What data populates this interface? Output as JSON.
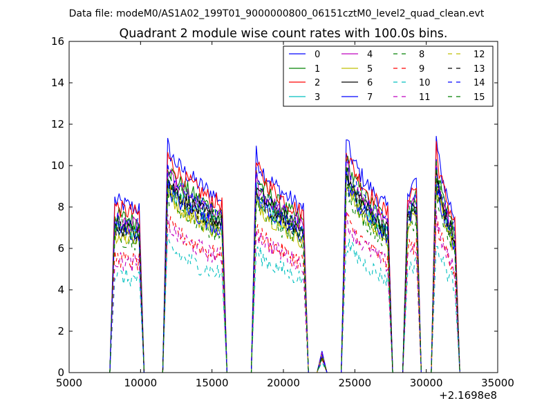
{
  "chart_data": {
    "type": "line",
    "suptitle": "Data file: modeM0/AS1A02_199T01_9000000800_06151cztM0_level2_quad_clean.evt",
    "title": "Quadrant 2 module wise count rates with 100.0s bins.",
    "xlabel": "",
    "ylabel": "",
    "x_offset_label": "+2.1698e8",
    "xlim": [
      5000,
      35000
    ],
    "ylim": [
      0,
      16
    ],
    "xticks": [
      "5000",
      "10000",
      "15000",
      "20000",
      "25000",
      "30000",
      "35000"
    ],
    "yticks": [
      "0",
      "2",
      "4",
      "6",
      "8",
      "10",
      "12",
      "14",
      "16"
    ],
    "grid": false,
    "legend_position": "top-right",
    "segments": [
      {
        "start": 8200,
        "end": 9900,
        "peak": 0.95,
        "tail": 0.9
      },
      {
        "start": 11900,
        "end": 15700,
        "peak": 1.25,
        "tail": 0.95
      },
      {
        "start": 18100,
        "end": 21400,
        "peak": 1.2,
        "tail": 0.9
      },
      {
        "start": 22700,
        "end": 22700,
        "peak": 0.35,
        "tail": 0.35
      },
      {
        "start": 24400,
        "end": 27300,
        "peak": 1.3,
        "tail": 0.9
      },
      {
        "start": 28700,
        "end": 29300,
        "peak": 1.0,
        "tail": 1.05
      },
      {
        "start": 30700,
        "end": 32000,
        "peak": 1.3,
        "tail": 0.85
      }
    ],
    "series": [
      {
        "name": "0",
        "color": "#0000ff",
        "dash": "solid",
        "level": 8.8
      },
      {
        "name": "1",
        "color": "#008000",
        "dash": "solid",
        "level": 8.1
      },
      {
        "name": "2",
        "color": "#ff0000",
        "dash": "solid",
        "level": 8.5
      },
      {
        "name": "3",
        "color": "#00bfbf",
        "dash": "solid",
        "level": 7.4
      },
      {
        "name": "4",
        "color": "#bf00bf",
        "dash": "solid",
        "level": 7.8
      },
      {
        "name": "5",
        "color": "#bfbf00",
        "dash": "solid",
        "level": 7.1
      },
      {
        "name": "6",
        "color": "#000000",
        "dash": "solid",
        "level": 7.6
      },
      {
        "name": "7",
        "color": "#0000ff",
        "dash": "solid",
        "level": 7.3
      },
      {
        "name": "8",
        "color": "#008000",
        "dash": "dashed",
        "level": 7.0
      },
      {
        "name": "9",
        "color": "#ff0000",
        "dash": "dashed",
        "level": 5.9
      },
      {
        "name": "10",
        "color": "#00bfbf",
        "dash": "dashed",
        "level": 5.0
      },
      {
        "name": "11",
        "color": "#bf00bf",
        "dash": "dashed",
        "level": 5.8
      },
      {
        "name": "12",
        "color": "#bfbf00",
        "dash": "dashed",
        "level": 7.3
      },
      {
        "name": "13",
        "color": "#000000",
        "dash": "dashed",
        "level": 7.5
      },
      {
        "name": "14",
        "color": "#0000ff",
        "dash": "dashed",
        "level": 7.9
      },
      {
        "name": "15",
        "color": "#008000",
        "dash": "dashed",
        "level": 7.7
      }
    ]
  }
}
